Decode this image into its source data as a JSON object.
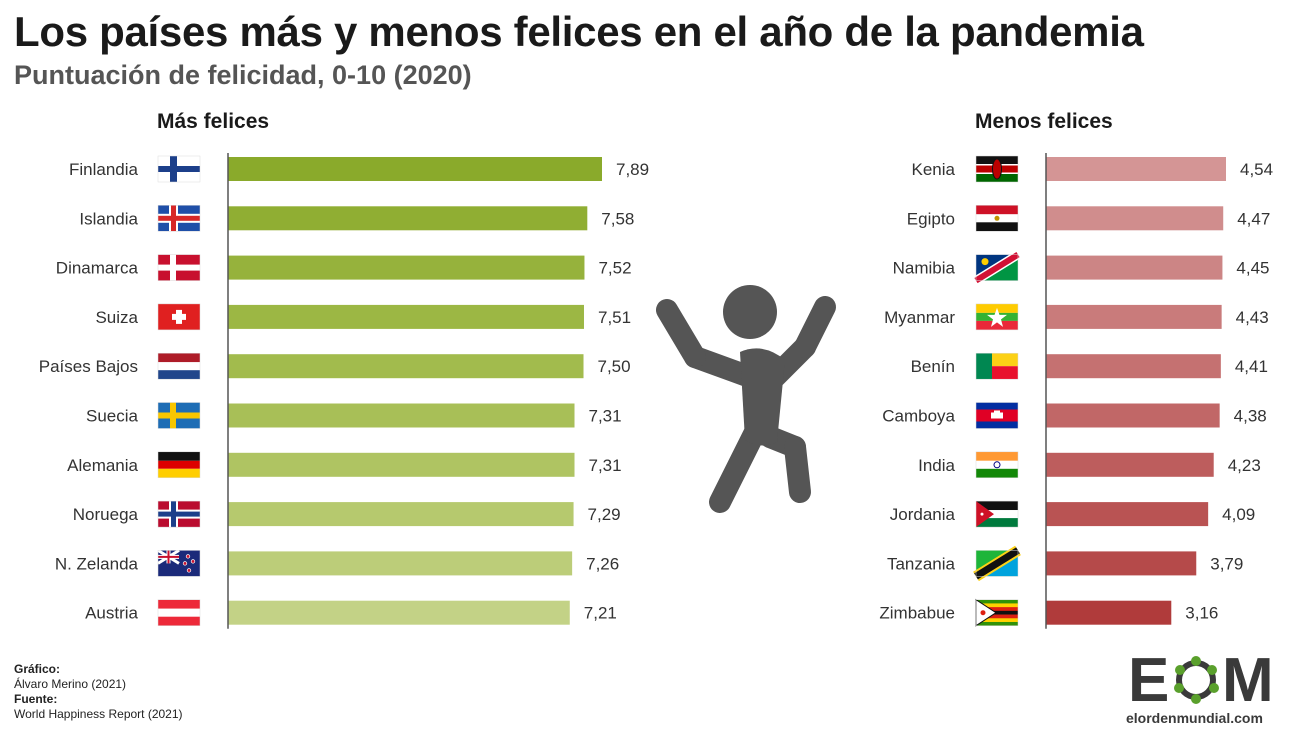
{
  "header": {
    "title": "Los países más y menos felices en el año de la pandemia",
    "subtitle": "Puntuación de felicidad, 0-10 (2020)"
  },
  "panels": {
    "left_title": "Más felices",
    "right_title": "Menos felices"
  },
  "footer": {
    "grafico_label": "Gráfico:",
    "grafico_value": "Álvaro Merino (2021)",
    "fuente_label": "Fuente:",
    "fuente_value": "World Happiness Report (2021)"
  },
  "logo": {
    "letter_e": "E",
    "letter_m": "M",
    "url": "elordenmundial.com"
  },
  "chart_data": [
    {
      "type": "bar",
      "orientation": "horizontal",
      "title": "Más felices",
      "categories": [
        "Finlandia",
        "Islandia",
        "Dinamarca",
        "Suiza",
        "Países Bajos",
        "Suecia",
        "Alemania",
        "Noruega",
        "N. Zelanda",
        "Austria"
      ],
      "values": [
        7.89,
        7.58,
        7.52,
        7.51,
        7.5,
        7.31,
        7.31,
        7.29,
        7.26,
        7.21
      ],
      "data_labels": [
        "7,89",
        "7,58",
        "7,52",
        "7,51",
        "7,50",
        "7,31",
        "7,31",
        "7,29",
        "7,26",
        "7,21"
      ],
      "colors": [
        "#8aaa2b",
        "#90ae33",
        "#96b23c",
        "#9cb744",
        "#a2bb4d",
        "#a8bf57",
        "#afc462",
        "#b6c96e",
        "#bccd79",
        "#c3d286"
      ],
      "flags": [
        "finland",
        "iceland",
        "denmark",
        "switzerland",
        "netherlands",
        "sweden",
        "germany",
        "norway",
        "new-zealand",
        "austria"
      ],
      "xlim": [
        0,
        7.89
      ]
    },
    {
      "type": "bar",
      "orientation": "horizontal",
      "title": "Menos felices",
      "categories": [
        "Kenia",
        "Egipto",
        "Namibia",
        "Myanmar",
        "Benín",
        "Camboya",
        "India",
        "Jordania",
        "Tanzania",
        "Zimbabue"
      ],
      "values": [
        4.54,
        4.47,
        4.45,
        4.43,
        4.41,
        4.38,
        4.23,
        4.09,
        3.79,
        3.16
      ],
      "data_labels": [
        "4,54",
        "4,47",
        "4,45",
        "4,43",
        "4,41",
        "4,38",
        "4,23",
        "4,09",
        "3,79",
        "3,16"
      ],
      "colors": [
        "#d49595",
        "#d08d8d",
        "#cc8585",
        "#c97b7b",
        "#c57171",
        "#c16767",
        "#bd5d5d",
        "#b95353",
        "#b54a4a",
        "#b03b3b"
      ],
      "flags": [
        "kenya",
        "egypt",
        "namibia",
        "myanmar",
        "benin",
        "cambodia",
        "india",
        "jordan",
        "tanzania",
        "zimbabwe"
      ],
      "xlim": [
        0,
        4.54
      ]
    }
  ]
}
